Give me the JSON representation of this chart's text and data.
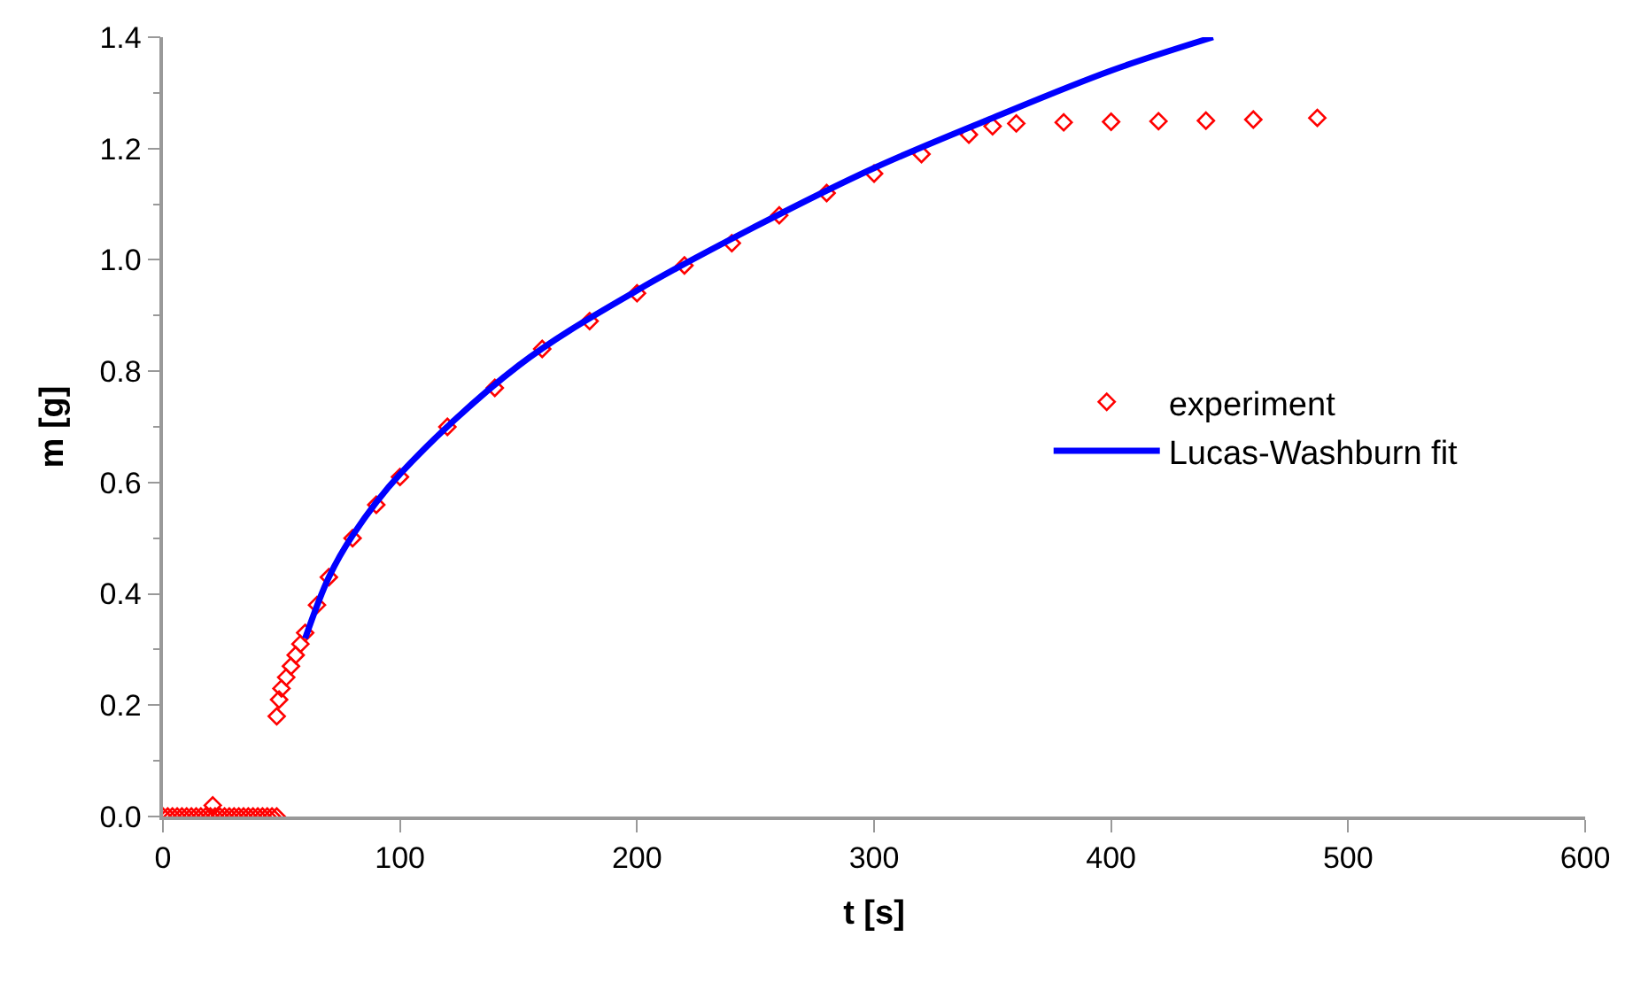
{
  "chart_data": {
    "type": "scatter",
    "xlabel": "t [s]",
    "ylabel": "m [g]",
    "xlim": [
      0,
      600
    ],
    "xticks": [
      0,
      100,
      200,
      300,
      400,
      500,
      600
    ],
    "ylim": [
      0,
      1.4
    ],
    "yticks": [
      {
        "value": 0.0,
        "label": "0.0"
      },
      {
        "value": 0.2,
        "label": "0.2"
      },
      {
        "value": 0.4,
        "label": "0.4"
      },
      {
        "value": 0.6,
        "label": "0.6"
      },
      {
        "value": 0.8,
        "label": "0.8"
      },
      {
        "value": 1.0,
        "label": "1.0"
      },
      {
        "value": 1.2,
        "label": "1.2"
      },
      {
        "value": 1.4,
        "label": "1.4"
      }
    ],
    "grid": false,
    "legend": "right",
    "series": [
      {
        "name": "experiment",
        "marker": "diamond",
        "color": "#ff0000",
        "x": [
          0,
          2,
          4,
          6,
          8,
          10,
          12,
          14,
          16,
          18,
          20,
          21,
          22,
          24,
          26,
          28,
          30,
          32,
          34,
          36,
          38,
          40,
          42,
          44,
          46,
          48,
          48,
          49,
          50,
          52,
          54,
          56,
          58,
          60,
          65,
          70,
          80,
          90,
          100,
          120,
          140,
          160,
          180,
          200,
          220,
          240,
          260,
          280,
          300,
          320,
          340,
          350,
          360,
          380,
          400,
          420,
          440,
          460,
          487
        ],
        "values": [
          0,
          0,
          0,
          0,
          0,
          0,
          0,
          0,
          0,
          0,
          0,
          0.02,
          0,
          0,
          0,
          0,
          0,
          0,
          0,
          0,
          0,
          0,
          0,
          0,
          0,
          0,
          0.18,
          0.21,
          0.23,
          0.25,
          0.27,
          0.29,
          0.31,
          0.33,
          0.38,
          0.43,
          0.5,
          0.56,
          0.61,
          0.7,
          0.77,
          0.84,
          0.89,
          0.94,
          0.99,
          1.03,
          1.08,
          1.12,
          1.155,
          1.19,
          1.225,
          1.24,
          1.245,
          1.247,
          1.248,
          1.249,
          1.25,
          1.252,
          1.255
        ]
      },
      {
        "name": "Lucas-Washburn fit",
        "type": "line",
        "marker": "none",
        "line_style": "solid",
        "color": "#0000ff",
        "x": [
          60,
          70,
          80,
          100,
          150,
          200,
          250,
          300,
          350,
          400,
          443
        ],
        "values": [
          0.32,
          0.43,
          0.505,
          0.615,
          0.81,
          0.945,
          1.06,
          1.165,
          1.255,
          1.34,
          1.4
        ]
      }
    ]
  }
}
